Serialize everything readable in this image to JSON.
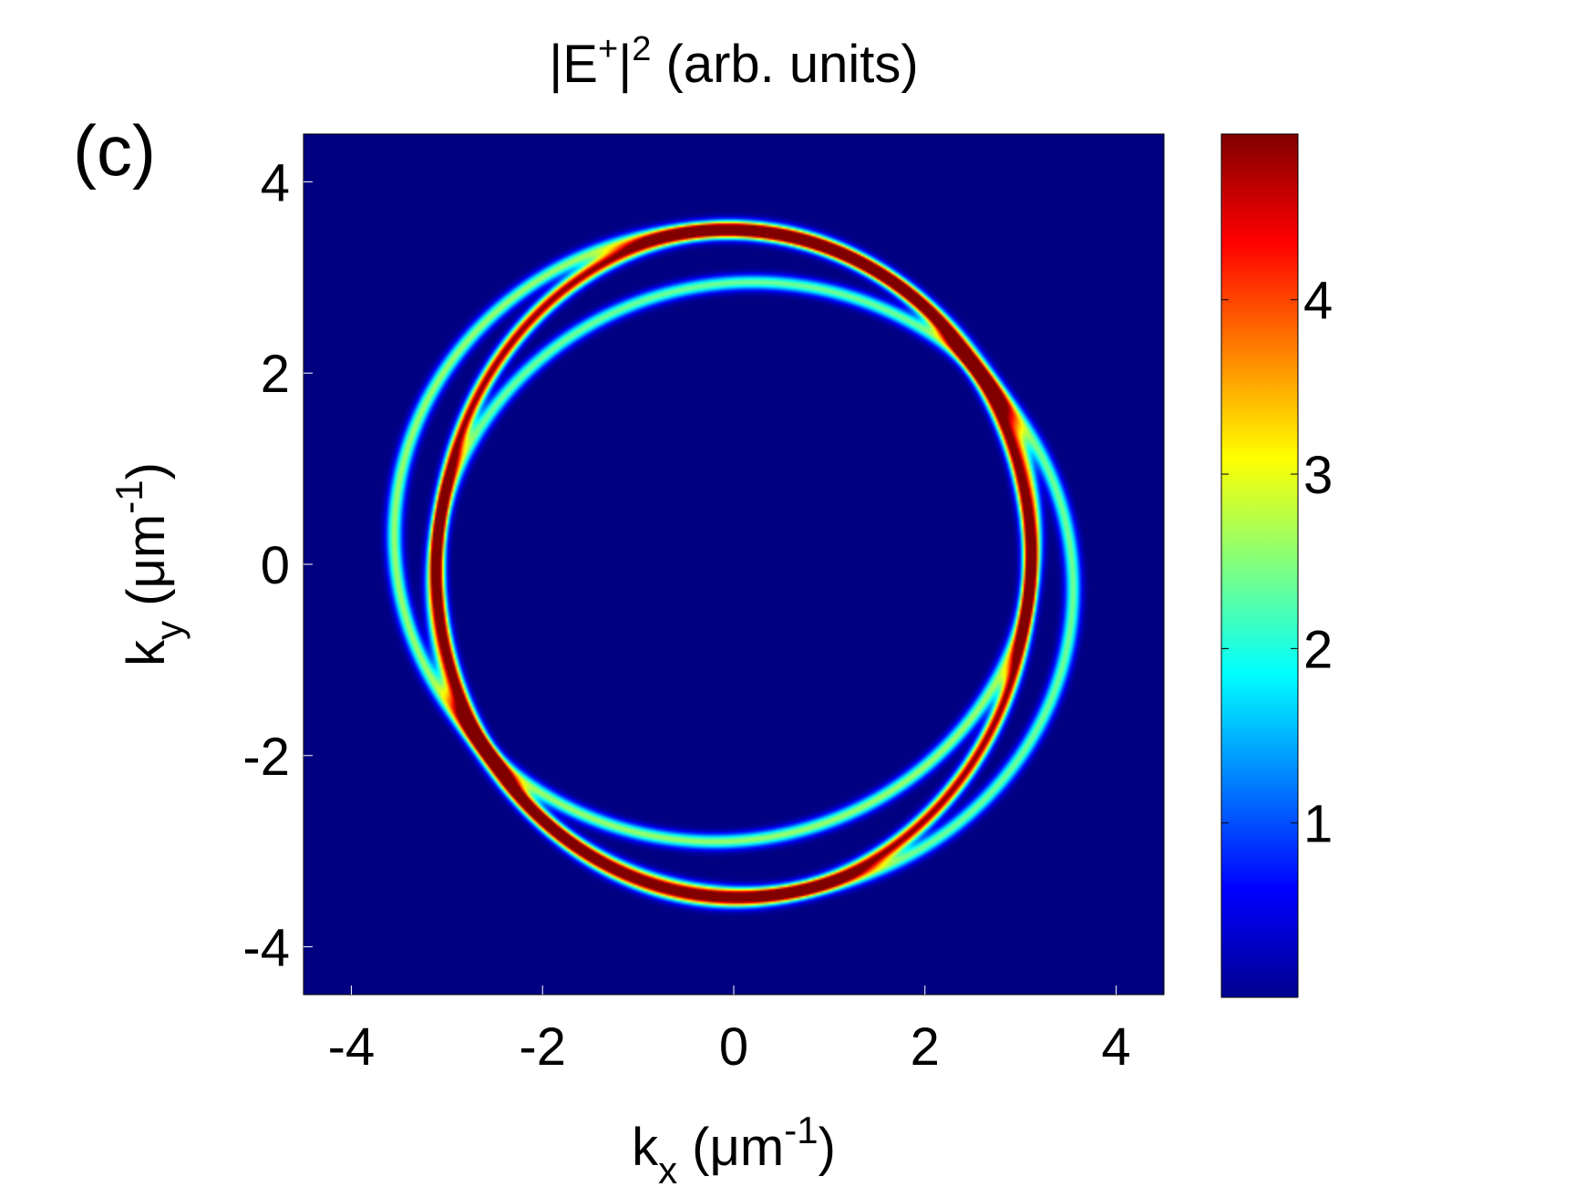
{
  "panel_label": "(c)",
  "colormap": "jet",
  "chart_data": {
    "type": "heatmap",
    "title": {
      "base": "|E",
      "sup": "+",
      "mid": "|",
      "sup2": "2",
      "rest": " (arb. units)"
    },
    "xlabel": {
      "base": "k",
      "sub": "x",
      "pre": " (μm",
      "sup": "-1",
      "post": ")"
    },
    "ylabel": {
      "base": "k",
      "sub": "y",
      "pre": " (μm",
      "sup": "-1",
      "post": ")"
    },
    "xlim": [
      -4.5,
      4.5
    ],
    "ylim": [
      -4.5,
      4.5
    ],
    "xticks": [
      -4,
      -2,
      0,
      2,
      4
    ],
    "yticks": [
      -4,
      -2,
      0,
      2,
      4
    ],
    "xtick_labels": [
      "-4",
      "-2",
      "0",
      "2",
      "4"
    ],
    "ytick_labels": [
      "-4",
      "-2",
      "0",
      "2",
      "4"
    ],
    "colorbar": {
      "range": [
        0,
        4.95
      ],
      "ticks": [
        1,
        2,
        3,
        4
      ],
      "tick_labels": [
        "1",
        "2",
        "3",
        "4"
      ]
    },
    "features": [
      {
        "kind": "ring",
        "center": [
          0.0,
          0.0
        ],
        "rx": 3.1,
        "ry": 3.5,
        "peak": 4.9
      },
      {
        "kind": "ring",
        "center": [
          -0.2,
          0.3
        ],
        "rx": 3.35,
        "ry": 3.2,
        "peak": 2.6
      },
      {
        "kind": "ring",
        "center": [
          0.2,
          -0.25
        ],
        "rx": 3.35,
        "ry": 3.2,
        "peak": 2.4
      }
    ]
  }
}
